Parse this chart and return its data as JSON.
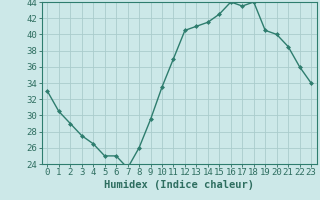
{
  "x": [
    0,
    1,
    2,
    3,
    4,
    5,
    6,
    7,
    8,
    9,
    10,
    11,
    12,
    13,
    14,
    15,
    16,
    17,
    18,
    19,
    20,
    21,
    22,
    23
  ],
  "y": [
    33,
    30.5,
    29,
    27.5,
    26.5,
    25,
    25,
    23.5,
    26,
    29.5,
    33.5,
    37,
    40.5,
    41,
    41.5,
    42.5,
    44,
    43.5,
    44,
    40.5,
    40,
    38.5,
    36,
    34
  ],
  "line_color": "#2e7d6e",
  "marker": "D",
  "marker_size": 2,
  "bg_color": "#cce8e8",
  "grid_color": "#aacccc",
  "xlabel": "Humidex (Indice chaleur)",
  "ylim": [
    24,
    44
  ],
  "xlim": [
    -0.5,
    23.5
  ],
  "yticks": [
    24,
    26,
    28,
    30,
    32,
    34,
    36,
    38,
    40,
    42,
    44
  ],
  "xticks": [
    0,
    1,
    2,
    3,
    4,
    5,
    6,
    7,
    8,
    9,
    10,
    11,
    12,
    13,
    14,
    15,
    16,
    17,
    18,
    19,
    20,
    21,
    22,
    23
  ],
  "font_color": "#2e6e60",
  "spine_color": "#2e7d6e",
  "font_size": 6.5,
  "xlabel_fontsize": 7.5,
  "linewidth": 1.0
}
